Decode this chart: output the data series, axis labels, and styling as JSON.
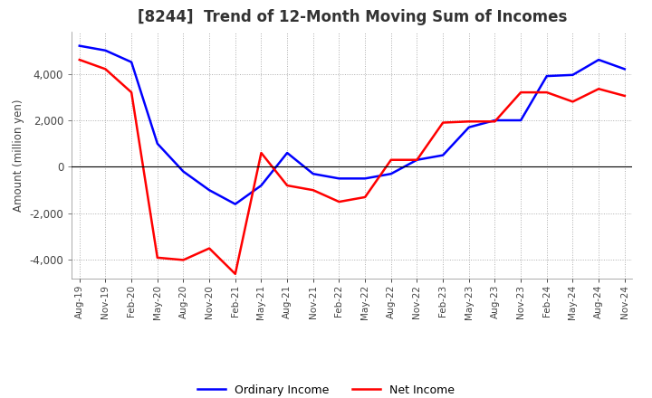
{
  "title": "[8244]  Trend of 12-Month Moving Sum of Incomes",
  "ylabel": "Amount (million yen)",
  "ylim": [
    -4800,
    5800
  ],
  "yticks": [
    -4000,
    -2000,
    0,
    2000,
    4000
  ],
  "line_color_ordinary": "#0000FF",
  "line_color_net": "#FF0000",
  "legend_labels": [
    "Ordinary Income",
    "Net Income"
  ],
  "x_labels": [
    "Aug-1",
    "Nov-1",
    "Feb-2",
    "May-2",
    "Aug-2",
    "Nov-2",
    "Feb-2",
    "May-2",
    "Aug-2",
    "Nov-2",
    "Feb-2",
    "May-2",
    "Aug-2",
    "Nov-2",
    "Feb-2",
    "May-2",
    "Aug-2",
    "Nov-2",
    "Feb-2",
    "May-2",
    "Aug-2",
    "Nov-2"
  ],
  "x_labels_display": [
    "Aug-19",
    "Nov-19",
    "Feb-20",
    "May-20",
    "Aug-20",
    "Nov-20",
    "Feb-21",
    "May-21",
    "Aug-21",
    "Nov-21",
    "Feb-22",
    "May-22",
    "Aug-22",
    "Nov-22",
    "Feb-23",
    "May-23",
    "Aug-23",
    "Nov-23",
    "Feb-24",
    "May-24",
    "Aug-24",
    "Nov-24"
  ],
  "ordinary_income": [
    5200,
    5000,
    4500,
    1000,
    -200,
    -1000,
    -1600,
    -800,
    600,
    -300,
    -500,
    -500,
    -300,
    300,
    500,
    1700,
    2000,
    2000,
    3900,
    3950,
    4600,
    4200
  ],
  "net_income": [
    4600,
    4200,
    3200,
    -3900,
    -4000,
    -3500,
    -4600,
    600,
    -800,
    -1000,
    -1500,
    -1300,
    300,
    300,
    1900,
    1950,
    1950,
    3200,
    3200,
    2800,
    3350,
    3050
  ]
}
